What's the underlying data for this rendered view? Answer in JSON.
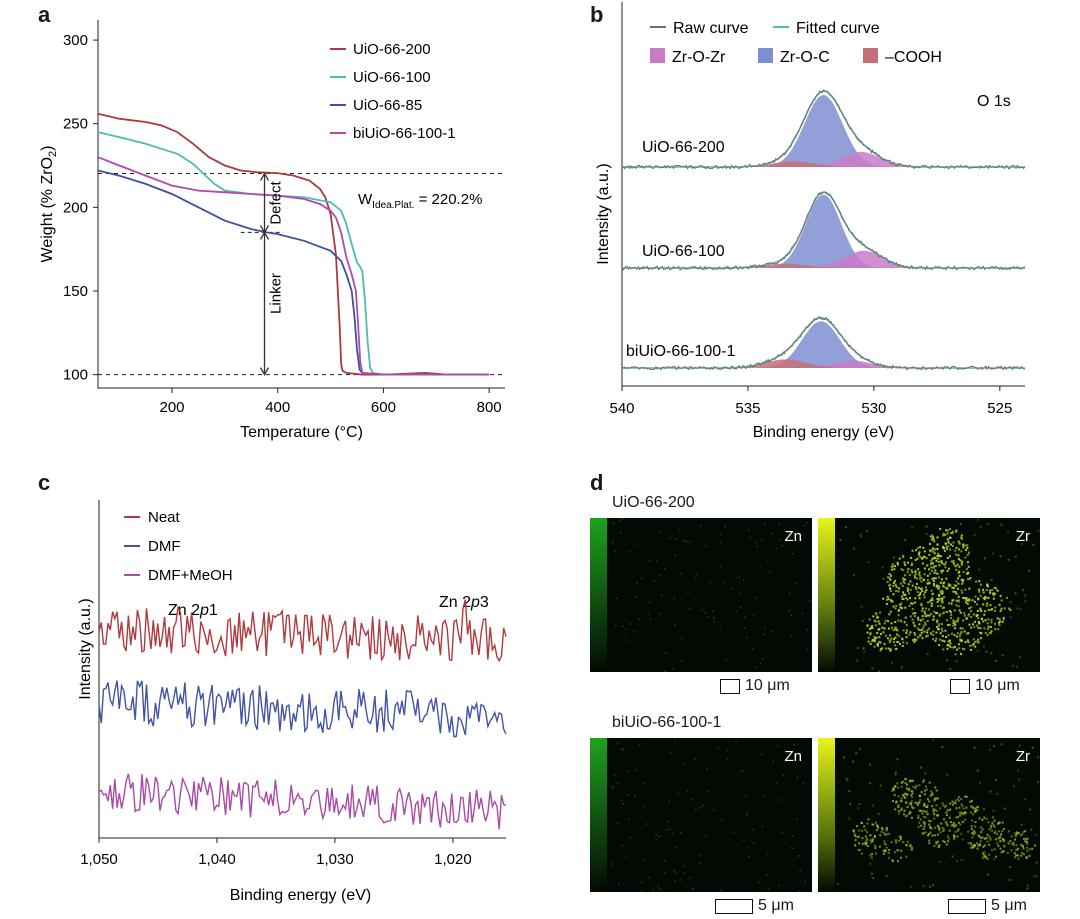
{
  "panel_labels": {
    "a": "a",
    "b": "b",
    "c": "c",
    "d": "d"
  },
  "colors": {
    "uio200": "#a83a40",
    "uio100": "#4dbcaf",
    "uio85": "#3f4f9f",
    "biuio": "#b04aad",
    "raw": "#707070",
    "fitted": "#5ab8a8",
    "zroZr": "#c97ac9",
    "zroC": "#7f8ed1",
    "cooh": "#c76f77",
    "neat": "#b03a3f",
    "dmf": "#4254a6",
    "dmfmeoh": "#a94ba6"
  },
  "chart_data": [
    {
      "id": "a",
      "type": "line",
      "xlabel": "Temperature (°C)",
      "ylabel": "Weight (% ZrO",
      "ylabel_sub": "2",
      "ylabel_end": ")",
      "xlim": [
        60,
        830
      ],
      "ylim": [
        92,
        312
      ],
      "xticks": [
        "200",
        "400",
        "600",
        "800"
      ],
      "yticks": [
        "100",
        "150",
        "200",
        "250",
        "300"
      ],
      "annotation": {
        "w_prefix": "W",
        "w_sub": "Idea.Plat.",
        "w_value": " = 220.2%",
        "defect": "Defect",
        "linker": "Linker",
        "ideal_plateau": 220.2,
        "actual_plateau": 185,
        "baseline": 100
      },
      "series": [
        {
          "name": "UiO-66-200",
          "color_key": "uio200",
          "x": [
            60,
            100,
            150,
            180,
            210,
            240,
            270,
            300,
            330,
            360,
            400,
            430,
            460,
            480,
            490,
            500,
            510,
            517,
            520,
            522,
            524,
            530,
            560,
            600,
            680,
            720,
            800
          ],
          "y": [
            256,
            253,
            251,
            249,
            245,
            238,
            230,
            225,
            222,
            221,
            220.5,
            219,
            216,
            211,
            206,
            196,
            172,
            130,
            107,
            103,
            102,
            101,
            100,
            100,
            101,
            100,
            100
          ]
        },
        {
          "name": "UiO-66-100",
          "color_key": "uio100",
          "x": [
            60,
            100,
            150,
            180,
            210,
            240,
            260,
            280,
            300,
            350,
            400,
            450,
            500,
            520,
            530,
            540,
            550,
            555,
            560,
            565,
            570,
            575,
            580,
            600,
            700,
            800
          ],
          "y": [
            245,
            242,
            238,
            235,
            232,
            226,
            220,
            214,
            210,
            208,
            207,
            206,
            203,
            198,
            190,
            178,
            167,
            165,
            162,
            145,
            120,
            104,
            101,
            100,
            100,
            100
          ]
        },
        {
          "name": "UiO-66-85",
          "color_key": "uio85",
          "x": [
            60,
            100,
            150,
            200,
            250,
            300,
            350,
            380,
            400,
            450,
            500,
            520,
            530,
            540,
            545,
            550,
            555,
            560,
            600,
            700,
            800
          ],
          "y": [
            222,
            219,
            214,
            208,
            200,
            192,
            187,
            185,
            184,
            180,
            174,
            168,
            160,
            150,
            135,
            115,
            103,
            101,
            100,
            100,
            100
          ]
        },
        {
          "name": "biUiO-66-100-1",
          "color_key": "biuio",
          "x": [
            60,
            100,
            150,
            200,
            250,
            300,
            350,
            400,
            450,
            480,
            500,
            510,
            520,
            530,
            540,
            548,
            552,
            556,
            560,
            600,
            700,
            800
          ],
          "y": [
            230,
            225,
            219,
            213,
            210,
            209,
            208,
            207,
            205,
            202,
            198,
            194,
            185,
            170,
            160,
            150,
            130,
            108,
            101,
            100,
            100,
            100
          ]
        }
      ]
    },
    {
      "id": "b",
      "type": "area",
      "xlabel": "Binding energy (eV)",
      "ylabel": "Intensity (a.u.)",
      "xlim": [
        540,
        524
      ],
      "xticks": [
        "540",
        "535",
        "530",
        "525"
      ],
      "legend": {
        "raw": "Raw curve",
        "fitted": "Fitted curve",
        "zroZr": "Zr-O-Zr",
        "zroC": "Zr-O-C",
        "cooh": "–COOH"
      },
      "region_label": "O 1s",
      "spectra": [
        {
          "name": "UiO-66-200",
          "components": [
            {
              "key": "zroC",
              "center": 532.0,
              "width": 0.75,
              "height": 100
            },
            {
              "key": "zroZr",
              "center": 530.5,
              "width": 0.75,
              "height": 21
            },
            {
              "key": "cooh",
              "center": 533.2,
              "width": 0.8,
              "height": 8
            }
          ]
        },
        {
          "name": "UiO-66-100",
          "components": [
            {
              "key": "zroC",
              "center": 532.0,
              "width": 0.7,
              "height": 102
            },
            {
              "key": "zroZr",
              "center": 530.4,
              "width": 0.75,
              "height": 24
            },
            {
              "key": "cooh",
              "center": 533.5,
              "width": 0.8,
              "height": 6
            }
          ]
        },
        {
          "name": "biUiO-66-100-1",
          "components": [
            {
              "key": "zroC",
              "center": 532.1,
              "width": 0.75,
              "height": 65
            },
            {
              "key": "zroZr",
              "center": 530.8,
              "width": 0.75,
              "height": 10
            },
            {
              "key": "cooh",
              "center": 533.5,
              "width": 0.8,
              "height": 12
            }
          ]
        }
      ]
    },
    {
      "id": "c",
      "type": "line",
      "xlabel": "Binding energy (eV)",
      "ylabel": "Intensity (a.u.)",
      "xlim": [
        1050,
        1015.5
      ],
      "xticks": [
        "1,050",
        "1,040",
        "1,030",
        "1,020"
      ],
      "peak_labels": [
        {
          "text_prefix": "Zn 2",
          "text_italic": "p",
          "text_suffix": "1",
          "energy": 1043.5
        },
        {
          "text_prefix": "Zn 2",
          "text_italic": "p",
          "text_suffix": "3",
          "energy": 1020.5
        }
      ],
      "series": [
        {
          "name": "Neat",
          "color_key": "neat",
          "trend": [
            62,
            58
          ],
          "noise": 7
        },
        {
          "name": "DMF",
          "color_key": "dmf",
          "trend": [
            40,
            36
          ],
          "noise": 7
        },
        {
          "name": "DMF+MeOH",
          "color_key": "dmfmeoh",
          "trend": [
            14,
            8
          ],
          "noise": 6
        }
      ]
    }
  ],
  "panel_d": {
    "rows": [
      {
        "title": "UiO-66-200",
        "maps": [
          {
            "element": "Zn",
            "scale": "10 μm"
          },
          {
            "element": "Zr",
            "scale": "10 μm"
          }
        ]
      },
      {
        "title": "biUiO-66-100-1",
        "maps": [
          {
            "element": "Zn",
            "scale": "5 μm"
          },
          {
            "element": "Zr",
            "scale": "5 μm"
          }
        ]
      }
    ]
  }
}
